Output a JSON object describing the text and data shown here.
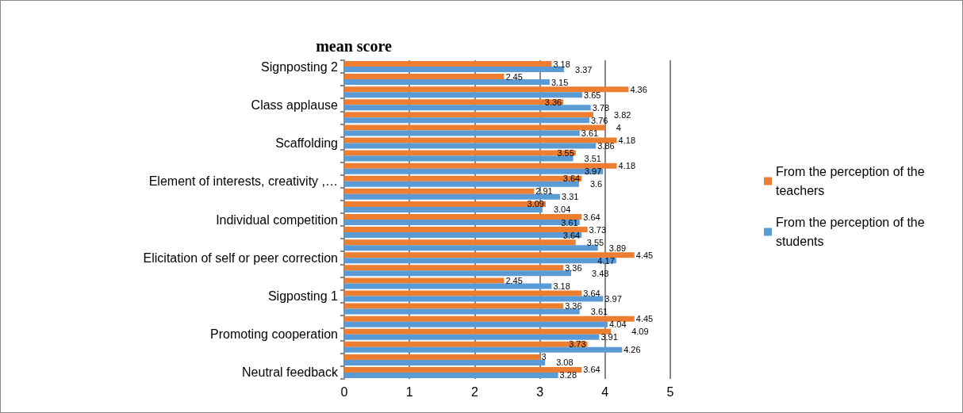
{
  "chart_data": {
    "type": "bar",
    "orientation": "horizontal",
    "title": "mean score",
    "categories": [
      "Signposting 2",
      null,
      null,
      "Class applause",
      null,
      null,
      "Scaffolding",
      null,
      null,
      "Element of interests, creativity ,…",
      null,
      null,
      "Individual competition",
      null,
      null,
      "Elicitation of self or peer correction",
      null,
      null,
      "Sigposting 1",
      null,
      null,
      "Promoting cooperation",
      null,
      null,
      "Neutral feedback"
    ],
    "series": [
      {
        "name": "From the perception of the teachers",
        "color": "#ed7d31",
        "values": [
          3.18,
          2.45,
          4.36,
          3.36,
          3.82,
          4,
          4.18,
          3.55,
          4.18,
          3.64,
          2.91,
          3.09,
          3.64,
          3.73,
          3.55,
          4.45,
          3.36,
          2.45,
          3.64,
          3.36,
          4.45,
          4.09,
          3.73,
          3,
          3.64
        ]
      },
      {
        "name": "From the perception of the students",
        "color": "#5b9bd5",
        "values": [
          3.37,
          3.15,
          3.65,
          3.78,
          3.76,
          3.61,
          3.86,
          3.51,
          3.97,
          3.6,
          3.31,
          3.04,
          3.61,
          3.64,
          3.89,
          4.17,
          3.48,
          3.18,
          3.97,
          3.61,
          4.04,
          3.91,
          4.26,
          3.08,
          3.28
        ]
      }
    ],
    "xlim": [
      0,
      5
    ],
    "xticks": [
      0,
      1,
      2,
      3,
      4,
      5
    ],
    "grid": "x",
    "legend": "right",
    "data_labels": true
  }
}
